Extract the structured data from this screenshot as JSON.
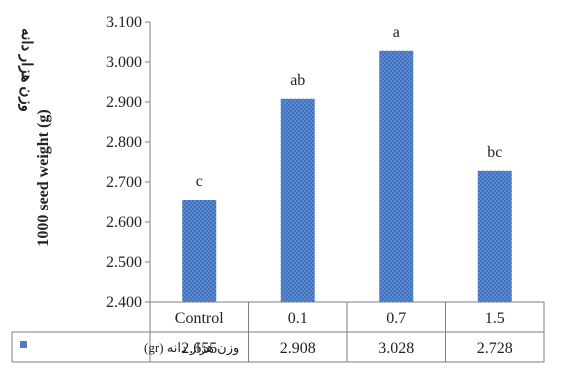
{
  "chart_data": {
    "type": "bar",
    "categories": [
      "Control",
      "0.1",
      "0.7",
      "1.5"
    ],
    "series": [
      {
        "name": "وزن هزار دانه (gr)",
        "values": [
          2.655,
          2.908,
          3.028,
          2.728
        ],
        "value_labels": [
          "2.655",
          "2.908",
          "3.028",
          "2.728"
        ],
        "color": "#4a7bc4"
      }
    ],
    "significance_letters": [
      "c",
      "ab",
      "a",
      "bc"
    ],
    "ylim": [
      2.4,
      3.1
    ],
    "yticks": [
      2.4,
      2.5,
      2.6,
      2.7,
      2.8,
      2.9,
      3.0,
      3.1
    ],
    "ytick_labels": [
      "2.400",
      "2.500",
      "2.600",
      "2.700",
      "2.800",
      "2.900",
      "3.000",
      "3.100"
    ],
    "ylabel": "1000 seed weight (g)",
    "ylabel_persian": "وزن هزار دانه",
    "xlabel": "",
    "title": "",
    "grid": false,
    "legend": "data-table-left",
    "data_table": true
  }
}
